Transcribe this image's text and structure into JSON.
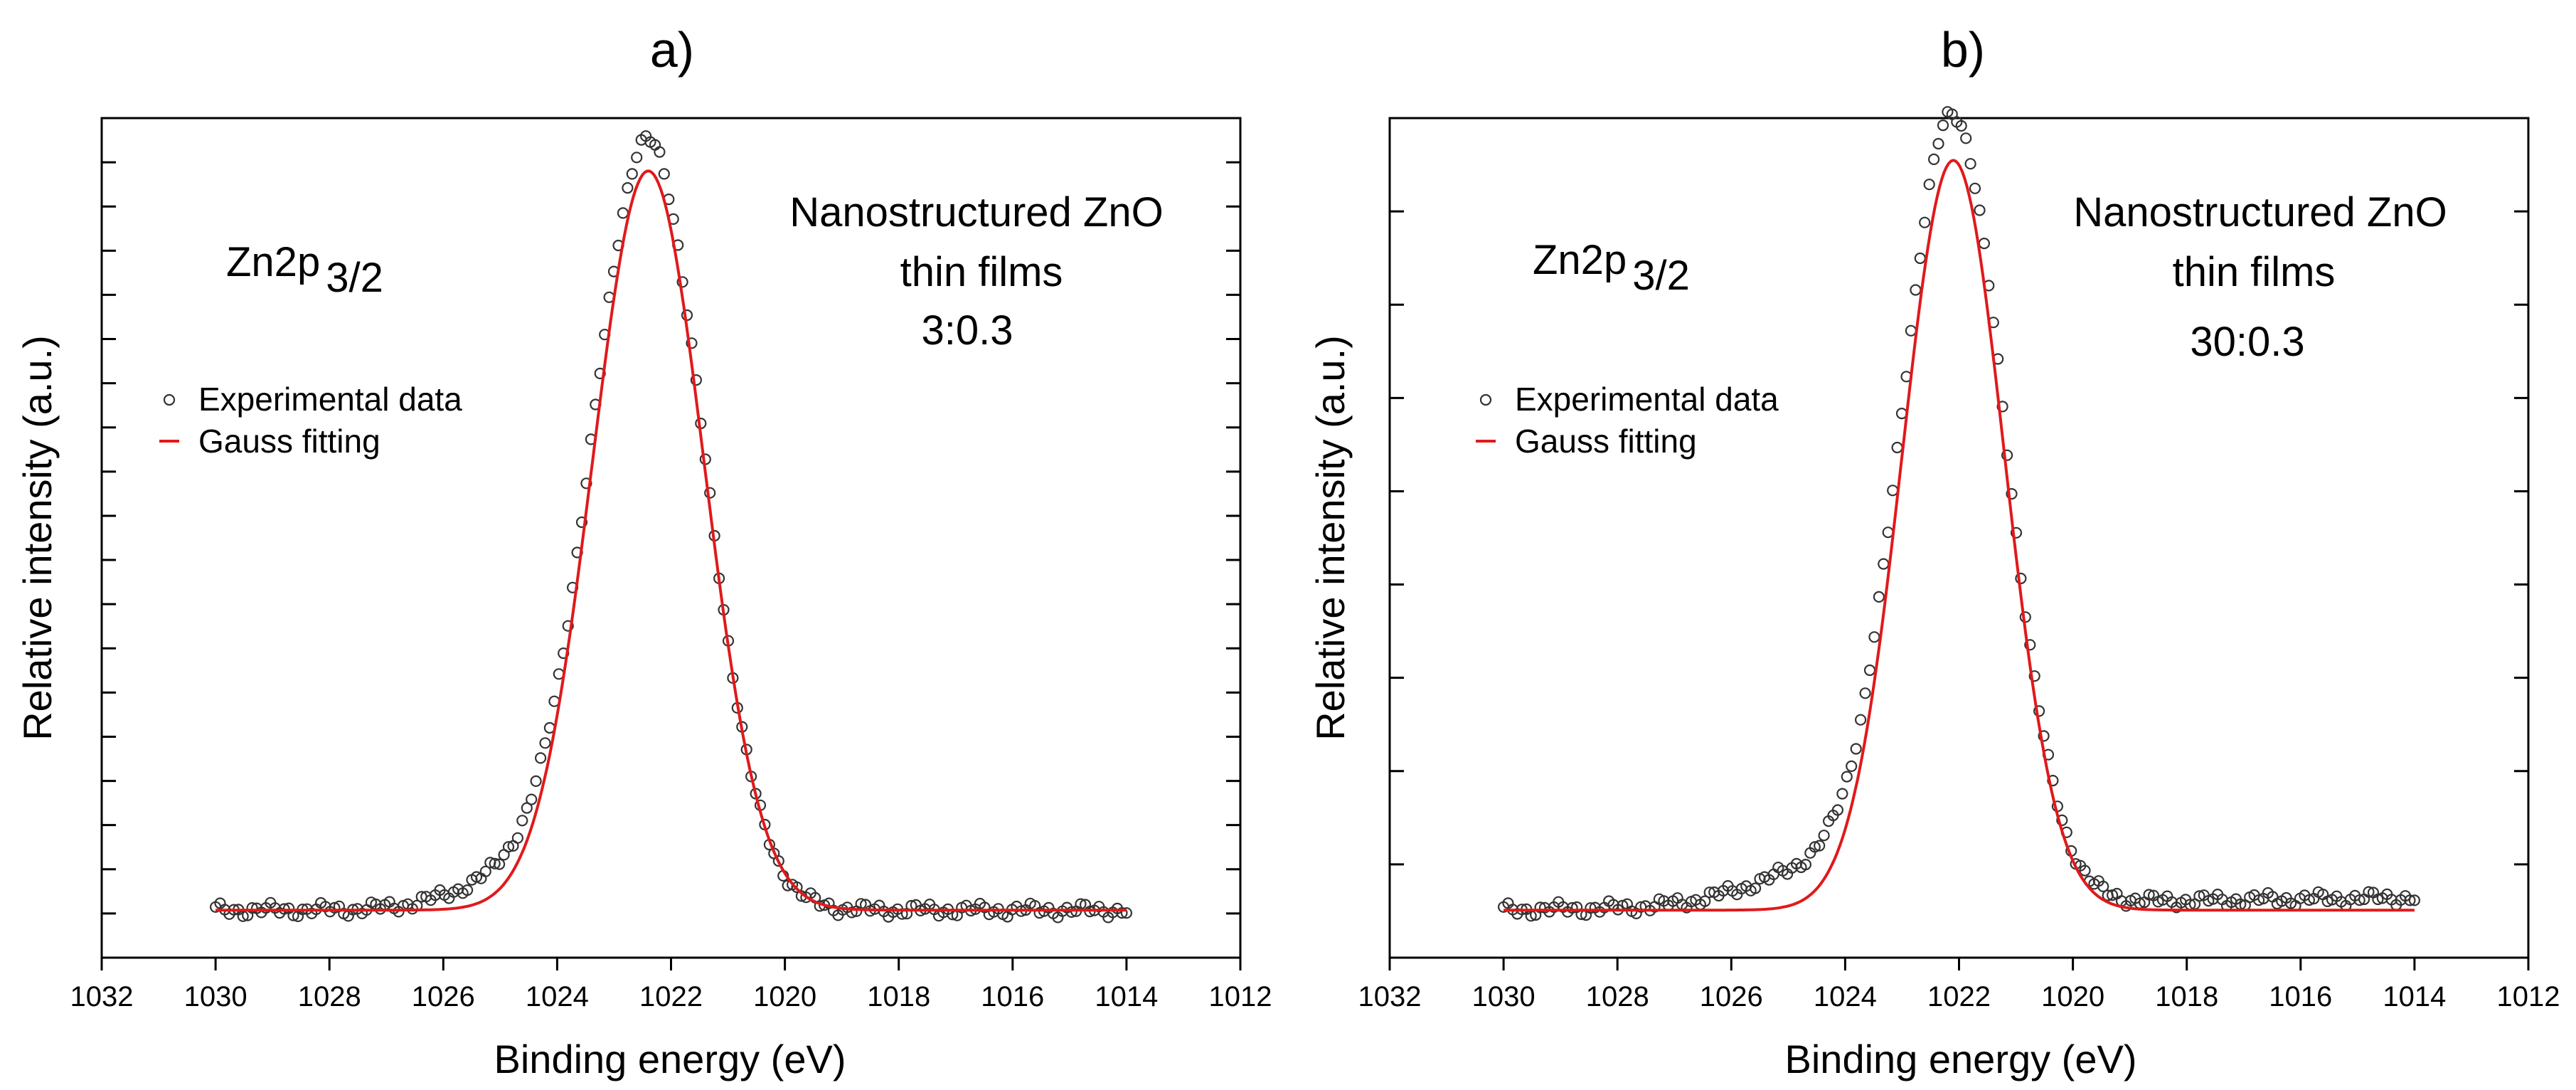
{
  "chart_data": [
    {
      "type": "scatter",
      "panel_label": "a)",
      "xlabel": "Binding energy (eV)",
      "ylabel": "Relative intensity (a.u.)",
      "xlim": [
        1032,
        1012
      ],
      "ylim": [
        -0.09,
        1.5
      ],
      "x_ticks": [
        1032,
        1030,
        1028,
        1026,
        1024,
        1022,
        1020,
        1018,
        1016,
        1014,
        1012
      ],
      "y_ticks_labeled": false,
      "y_tick_count": 18,
      "grid": false,
      "legend_placement": "middle-left",
      "annotations": {
        "species_main": "Zn2p",
        "species_sub": "3/2",
        "title_line1": "Nanostructured ZnO",
        "title_line2": "thin films",
        "ratio": "3:0.3"
      },
      "series": [
        {
          "name": "Experimental data",
          "kind": "markers",
          "color": "#333333",
          "x_start": 1030,
          "x_end": 1014,
          "n_points": 200,
          "center": 1022.4,
          "sigma": 0.97,
          "amplitude": 1.45,
          "baseline": 0.0,
          "shoulder": {
            "center": 1024.6,
            "sigma": 1.1,
            "amplitude": 0.06
          },
          "background_slope": 0.0
        },
        {
          "name": "Gauss fitting",
          "kind": "line",
          "color": "#e0191b",
          "x_start": 1030,
          "x_end": 1014,
          "n_points": 400,
          "center": 1022.4,
          "sigma": 0.98,
          "amplitude": 1.4,
          "baseline": 0.0
        }
      ]
    },
    {
      "type": "scatter",
      "panel_label": "b)",
      "xlabel": "Binding energy (eV)",
      "ylabel": "Relative intensity (a.u.)",
      "xlim": [
        1032,
        1012
      ],
      "ylim": [
        -0.09,
        1.5
      ],
      "x_ticks": [
        1032,
        1030,
        1028,
        1026,
        1024,
        1022,
        1020,
        1018,
        1016,
        1014,
        1012
      ],
      "y_ticks_labeled": false,
      "y_tick_count": 8,
      "grid": false,
      "legend_placement": "middle-left",
      "annotations": {
        "species_main": "Zn2p",
        "species_sub": "3/2",
        "title_line1": "Nanostructured ZnO",
        "title_line2": "thin films",
        "ratio": "30:0.3"
      },
      "series": [
        {
          "name": "Experimental data",
          "kind": "markers",
          "color": "#333333",
          "x_start": 1030,
          "x_end": 1014,
          "n_points": 200,
          "center": 1022.1,
          "sigma": 0.9,
          "amplitude": 1.48,
          "baseline": 0.0,
          "shoulder": {
            "center": 1024.3,
            "sigma": 1.3,
            "amplitude": 0.07
          },
          "background_slope": 0.0015
        },
        {
          "name": "Gauss fitting",
          "kind": "line",
          "color": "#e0191b",
          "x_start": 1030,
          "x_end": 1014,
          "n_points": 400,
          "center": 1022.1,
          "sigma": 0.9,
          "amplitude": 1.42,
          "baseline": 0.0
        }
      ]
    }
  ]
}
